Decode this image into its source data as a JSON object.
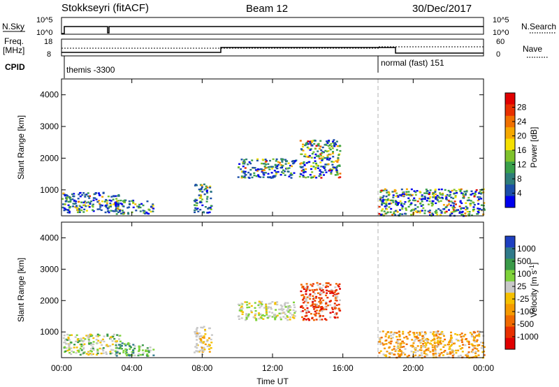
{
  "header": {
    "station": "Stokkseyri (fitACF)",
    "beam": "Beam 12",
    "date": "30/Dec/2017"
  },
  "noise_panel": {
    "left_label": "N.Sky",
    "right_label": "N.Search",
    "left_ticks": [
      "10^5",
      "10^0"
    ],
    "right_ticks": [
      "10^5",
      "10^0"
    ]
  },
  "freq_panel": {
    "left_label_1": "Freq.",
    "left_label_2": "[MHz]",
    "right_label": "Nave",
    "left_ticks": [
      "18",
      "8"
    ],
    "right_ticks": [
      "60",
      "0"
    ]
  },
  "cpid": {
    "label": "CPID",
    "segments": [
      "themis -3300",
      "normal (fast) 151"
    ]
  },
  "colors": {
    "power_scale": [
      "#0000ee",
      "#1c4fa8",
      "#2e7d7a",
      "#3aa04a",
      "#7fc22c",
      "#f5e000",
      "#f5a800",
      "#f07000",
      "#e83000",
      "#e00000"
    ],
    "velocity_scale": [
      "#1e3fc0",
      "#2f7a8a",
      "#3a9a48",
      "#7ed23a",
      "#c8c8c8",
      "#f5c000",
      "#f59a00",
      "#f06a00",
      "#e83000",
      "#e00000"
    ]
  },
  "chart_data": [
    {
      "type": "heatmap",
      "name": "power",
      "ylabel": "Slant Range [km]",
      "colorbar_label": "Power [dB]",
      "colorbar_ticks": [
        "4",
        "8",
        "12",
        "16",
        "20",
        "24",
        "28"
      ],
      "xlim": [
        "00:00",
        "00:00"
      ],
      "ylim": [
        180,
        4500
      ],
      "yticks": [
        "1000",
        "2000",
        "3000",
        "4000"
      ],
      "features": [
        {
          "t_start": 0.0,
          "t_end": 3.3,
          "r_min": 300,
          "r_max": 950,
          "level": "4-16 dB"
        },
        {
          "t_start": 3.0,
          "t_end": 5.2,
          "r_min": 250,
          "r_max": 700,
          "level": "8-24 dB"
        },
        {
          "t_start": 7.5,
          "t_end": 8.5,
          "r_min": 300,
          "r_max": 1200,
          "level": "4-12 dB"
        },
        {
          "t_start": 10.0,
          "t_end": 13.3,
          "r_min": 1400,
          "r_max": 2000,
          "level": "4-8 dB"
        },
        {
          "t_start": 13.5,
          "t_end": 15.8,
          "r_min": 1400,
          "r_max": 2600,
          "level": "8-28 dB"
        },
        {
          "t_start": 18.0,
          "t_end": 24.0,
          "r_min": 200,
          "r_max": 1050,
          "level": "4-28 dB"
        }
      ]
    },
    {
      "type": "heatmap",
      "name": "velocity",
      "ylabel": "Slant Range [km]",
      "colorbar_label": "Velocity [m s^-1]",
      "colorbar_ticks": [
        "1000",
        "500",
        "100",
        "25",
        "-25",
        "-100",
        "-500",
        "-1000"
      ],
      "xlabel": "Time UT",
      "xticks": [
        "00:00",
        "04:00",
        "08:00",
        "12:00",
        "16:00",
        "20:00",
        "00:00"
      ],
      "xlim": [
        "00:00",
        "00:00"
      ],
      "ylim": [
        180,
        4500
      ],
      "yticks": [
        "1000",
        "2000",
        "3000",
        "4000"
      ],
      "features": [
        {
          "t_start": 0.0,
          "t_end": 3.3,
          "r_min": 300,
          "r_max": 950,
          "level": "-100 to 100 m/s"
        },
        {
          "t_start": 3.0,
          "t_end": 5.2,
          "r_min": 250,
          "r_max": 700,
          "level": "25 to 500 m/s"
        },
        {
          "t_start": 7.5,
          "t_end": 8.5,
          "r_min": 300,
          "r_max": 1200,
          "level": "-100 to 25 m/s"
        },
        {
          "t_start": 10.0,
          "t_end": 13.3,
          "r_min": 1400,
          "r_max": 2000,
          "level": "-25 to 25 m/s"
        },
        {
          "t_start": 13.5,
          "t_end": 15.8,
          "r_min": 1400,
          "r_max": 2600,
          "level": "-1000 to -100 m/s"
        },
        {
          "t_start": 18.0,
          "t_end": 24.0,
          "r_min": 200,
          "r_max": 1050,
          "level": "-500 to -25 m/s"
        }
      ]
    }
  ]
}
